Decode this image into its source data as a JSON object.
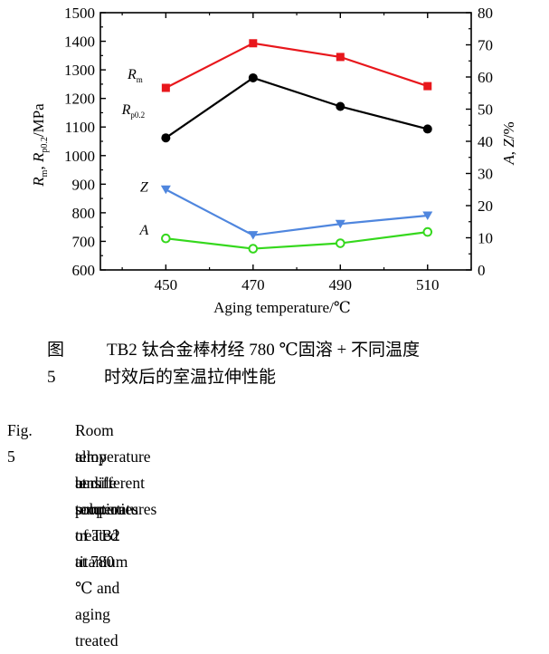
{
  "chart_data": {
    "type": "line",
    "x": [
      450,
      470,
      490,
      510
    ],
    "xlabel": "Aging temperature/℃",
    "xticks": [
      450,
      470,
      490,
      510
    ],
    "xlim": [
      435,
      520
    ],
    "left_axis": {
      "label": "R_m, R_p0.2/MPa",
      "ylim": [
        600,
        1500
      ],
      "ticks": [
        600,
        700,
        800,
        900,
        1000,
        1100,
        1200,
        1300,
        1400,
        1500
      ]
    },
    "right_axis": {
      "label": "A, Z/%",
      "ylim": [
        0,
        80
      ],
      "ticks": [
        0,
        10,
        20,
        30,
        40,
        50,
        60,
        70,
        80
      ]
    },
    "series": [
      {
        "name": "R_m",
        "axis": "left",
        "color": "#e8171c",
        "marker": "square-filled",
        "values": [
          1237,
          1393,
          1345,
          1243
        ]
      },
      {
        "name": "R_p0.2",
        "axis": "left",
        "color": "#000000",
        "marker": "circle-filled",
        "values": [
          1062,
          1272,
          1172,
          1093
        ]
      },
      {
        "name": "Z",
        "axis": "right",
        "color": "#4f86de",
        "marker": "triangle-down-filled",
        "values": [
          25.0,
          10.8,
          14.3,
          16.9
        ]
      },
      {
        "name": "A",
        "axis": "right",
        "color": "#35d81d",
        "marker": "circle-open",
        "values": [
          9.8,
          6.6,
          8.3,
          11.8
        ]
      }
    ],
    "grid": false
  },
  "caption": {
    "cn_label": "图 5",
    "cn_line1": "TB2 钛合金棒材经 780 ℃固溶 + 不同温度",
    "cn_line2": "时效后的室温拉伸性能",
    "en_label": "Fig. 5",
    "en_line1": "Room temperature tensile properties of TB2 titanium",
    "en_line2": "alloy bar solution treated at 780 ℃ and aging treated",
    "en_line3": "at different temperatures"
  }
}
